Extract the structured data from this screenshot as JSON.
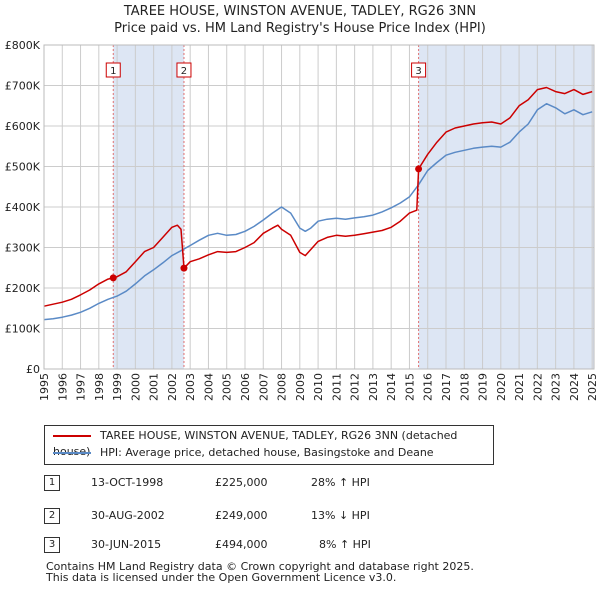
{
  "header": {
    "title_line1": "TAREE HOUSE, WINSTON AVENUE, TADLEY, RG26 3NN",
    "title_line2": "Price paid vs. HM Land Registry's House Price Index (HPI)"
  },
  "colors": {
    "property": "#cc0000",
    "hpi": "#5a8ac6",
    "shade": "#dde6f4",
    "vline": "#e07070",
    "grid": "#cccccc"
  },
  "chart_data": {
    "type": "line",
    "title": "TAREE HOUSE, WINSTON AVENUE, TADLEY, RG26 3NN — Price paid vs. HM Land Registry's House Price Index (HPI)",
    "xlim": [
      1995,
      2025.1
    ],
    "ylim": [
      0,
      800000
    ],
    "y_ticks": [
      {
        "value": 0,
        "label": "£0"
      },
      {
        "value": 100000,
        "label": "£100K"
      },
      {
        "value": 200000,
        "label": "£200K"
      },
      {
        "value": 300000,
        "label": "£300K"
      },
      {
        "value": 400000,
        "label": "£400K"
      },
      {
        "value": 500000,
        "label": "£500K"
      },
      {
        "value": 600000,
        "label": "£600K"
      },
      {
        "value": 700000,
        "label": "£700K"
      },
      {
        "value": 800000,
        "label": "£800K"
      }
    ],
    "x_ticks": [
      "1995",
      "1996",
      "1997",
      "1998",
      "1999",
      "2000",
      "2001",
      "2002",
      "2003",
      "2004",
      "2005",
      "2006",
      "2007",
      "2008",
      "2009",
      "2010",
      "2011",
      "2012",
      "2013",
      "2014",
      "2015",
      "2016",
      "2017",
      "2018",
      "2019",
      "2020",
      "2021",
      "2022",
      "2023",
      "2024",
      "2025"
    ],
    "shaded_ranges": [
      [
        1998.79,
        2002.66
      ],
      [
        2015.5,
        2025.1
      ]
    ],
    "series": [
      {
        "name": "TAREE HOUSE, WINSTON AVENUE, TADLEY, RG26 3NN (detached house)",
        "x": [
          1995,
          1995.5,
          1996,
          1996.5,
          1997,
          1997.5,
          1998,
          1998.5,
          1998.79,
          1999,
          1999.5,
          2000,
          2000.5,
          2001,
          2001.5,
          2002,
          2002.3,
          2002.5,
          2002.66,
          2003,
          2003.5,
          2004,
          2004.5,
          2005,
          2005.5,
          2006,
          2006.5,
          2007,
          2007.5,
          2007.8,
          2008,
          2008.5,
          2009,
          2009.3,
          2009.6,
          2010,
          2010.5,
          2011,
          2011.5,
          2012,
          2012.5,
          2013,
          2013.5,
          2014,
          2014.5,
          2015,
          2015.4,
          2015.5,
          2016,
          2016.5,
          2017,
          2017.5,
          2018,
          2018.5,
          2019,
          2019.5,
          2020,
          2020.5,
          2021,
          2021.5,
          2022,
          2022.5,
          2023,
          2023.5,
          2024,
          2024.5,
          2025
        ],
        "values": [
          155000,
          160000,
          165000,
          172000,
          183000,
          195000,
          210000,
          222000,
          225000,
          228000,
          240000,
          265000,
          290000,
          300000,
          325000,
          350000,
          355000,
          345000,
          249000,
          265000,
          272000,
          282000,
          290000,
          288000,
          290000,
          300000,
          312000,
          335000,
          348000,
          355000,
          345000,
          330000,
          288000,
          280000,
          295000,
          315000,
          325000,
          330000,
          328000,
          330000,
          334000,
          338000,
          342000,
          350000,
          365000,
          385000,
          392000,
          494000,
          530000,
          560000,
          585000,
          595000,
          600000,
          605000,
          608000,
          610000,
          605000,
          620000,
          650000,
          665000,
          690000,
          695000,
          685000,
          680000,
          690000,
          678000,
          685000
        ]
      },
      {
        "name": "HPI: Average price, detached house, Basingstoke and Deane",
        "x": [
          1995,
          1995.5,
          1996,
          1996.5,
          1997,
          1997.5,
          1998,
          1998.5,
          1999,
          1999.5,
          2000,
          2000.5,
          2001,
          2001.5,
          2002,
          2002.5,
          2003,
          2003.5,
          2004,
          2004.5,
          2005,
          2005.5,
          2006,
          2006.5,
          2007,
          2007.5,
          2008,
          2008.5,
          2009,
          2009.3,
          2009.6,
          2010,
          2010.5,
          2011,
          2011.5,
          2012,
          2012.5,
          2013,
          2013.5,
          2014,
          2014.5,
          2015,
          2015.5,
          2016,
          2016.5,
          2017,
          2017.5,
          2018,
          2018.5,
          2019,
          2019.5,
          2020,
          2020.5,
          2021,
          2021.5,
          2022,
          2022.5,
          2023,
          2023.5,
          2024,
          2024.5,
          2025
        ],
        "values": [
          122000,
          124000,
          128000,
          133000,
          140000,
          150000,
          162000,
          172000,
          180000,
          192000,
          210000,
          230000,
          245000,
          262000,
          280000,
          292000,
          305000,
          318000,
          330000,
          335000,
          330000,
          332000,
          340000,
          352000,
          368000,
          385000,
          400000,
          385000,
          348000,
          340000,
          348000,
          365000,
          370000,
          372000,
          370000,
          373000,
          376000,
          380000,
          388000,
          398000,
          410000,
          425000,
          455000,
          490000,
          510000,
          528000,
          535000,
          540000,
          545000,
          548000,
          550000,
          548000,
          560000,
          585000,
          605000,
          640000,
          655000,
          645000,
          630000,
          640000,
          628000,
          635000
        ]
      }
    ],
    "sales": [
      {
        "label": "1",
        "x": 1998.79,
        "value": 225000
      },
      {
        "label": "2",
        "x": 2002.66,
        "value": 249000
      },
      {
        "label": "3",
        "x": 2015.5,
        "value": 494000
      }
    ]
  },
  "legend": {
    "property_label": "TAREE HOUSE, WINSTON AVENUE, TADLEY, RG26 3NN (detached house)",
    "hpi_label": "HPI: Average price, detached house, Basingstoke and Deane"
  },
  "transactions": [
    {
      "num": "1",
      "date": "13-OCT-1998",
      "price": "£225,000",
      "hpi": "28% ↑ HPI"
    },
    {
      "num": "2",
      "date": "30-AUG-2002",
      "price": "£249,000",
      "hpi": "13% ↓ HPI"
    },
    {
      "num": "3",
      "date": "30-JUN-2015",
      "price": "£494,000",
      "hpi": "8% ↑ HPI"
    }
  ],
  "footer": {
    "line1": "Contains HM Land Registry data © Crown copyright and database right 2025.",
    "line2": "This data is licensed under the Open Government Licence v3.0."
  }
}
